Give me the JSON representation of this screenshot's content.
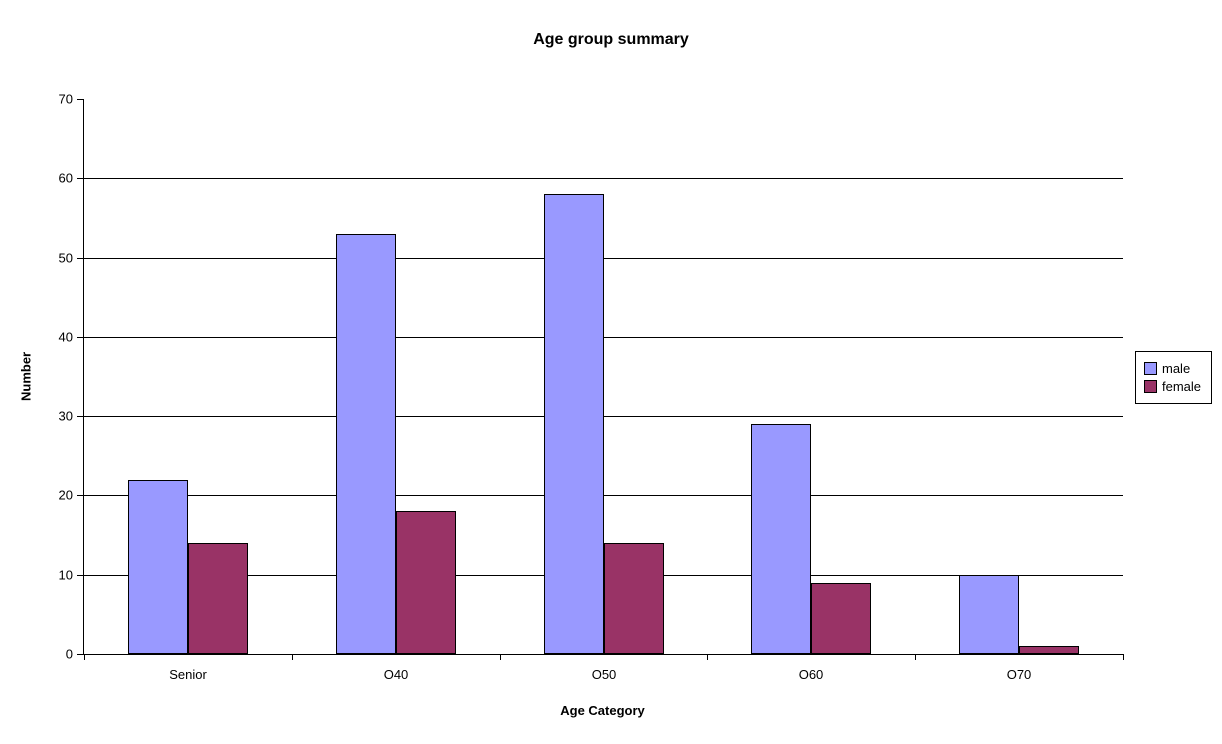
{
  "chart_data": {
    "type": "bar",
    "title": "Age group summary",
    "xlabel": "Age Category",
    "ylabel": "Number",
    "categories": [
      "Senior",
      "O40",
      "O50",
      "O60",
      "O70"
    ],
    "series": [
      {
        "name": "male",
        "color": "#9999FF",
        "values": [
          22,
          53,
          58,
          29,
          10
        ]
      },
      {
        "name": "female",
        "color": "#993366",
        "values": [
          14,
          18,
          14,
          9,
          1
        ]
      }
    ],
    "ylim": [
      0,
      70
    ],
    "yticks": [
      0,
      10,
      20,
      30,
      40,
      50,
      60,
      70
    ],
    "grid": true,
    "legend_position": "right",
    "colors": {
      "background": "#FFFFFF",
      "axis": "#000000",
      "gridline": "#000000",
      "text": "#000000"
    }
  }
}
